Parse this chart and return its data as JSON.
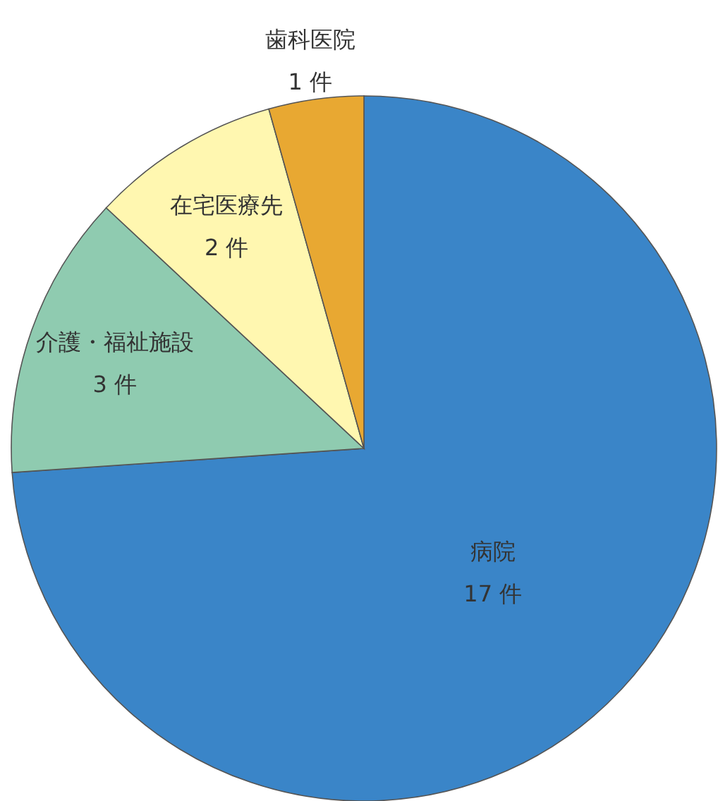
{
  "chart_data": {
    "type": "pie",
    "categories": [
      "病院",
      "介護・福祉施設",
      "在宅医療先",
      "歯科医院"
    ],
    "values": [
      17,
      3,
      2,
      1
    ],
    "value_labels": [
      "17 件",
      "3 件",
      "2 件",
      "1 件"
    ],
    "colors": [
      "#3a85c8",
      "#8fcbb0",
      "#fff7b0",
      "#e8a832"
    ]
  }
}
